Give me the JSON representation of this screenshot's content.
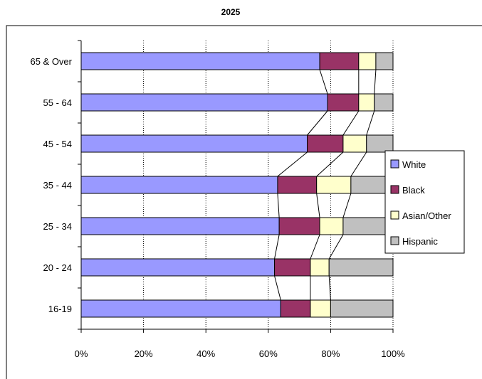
{
  "chart_data": {
    "type": "bar",
    "orientation": "horizontal",
    "stacked": "percent",
    "title": "2025",
    "categories": [
      "65 & Over",
      "55 - 64",
      "45 - 54",
      "35 - 44",
      "25 - 34",
      "20 - 24",
      "16-19"
    ],
    "series": [
      {
        "name": "White",
        "color": "#9999ff",
        "values": [
          76.5,
          79,
          72.5,
          63,
          63.5,
          62,
          64
        ]
      },
      {
        "name": "Black",
        "color": "#993366",
        "values": [
          12.5,
          10,
          11.5,
          12.5,
          13,
          11.5,
          9.5
        ]
      },
      {
        "name": "Asian/Other",
        "color": "#ffffcc",
        "values": [
          5.5,
          5,
          7.5,
          11,
          7.5,
          6,
          6.5
        ]
      },
      {
        "name": "Hispanic",
        "color": "#c0c0c0",
        "values": [
          5.5,
          6,
          8.5,
          13.5,
          16,
          20.5,
          20
        ]
      }
    ],
    "xlim": [
      0,
      100
    ],
    "xticks": [
      "0%",
      "20%",
      "40%",
      "60%",
      "80%",
      "100%"
    ],
    "xlabel": "",
    "ylabel": "",
    "grid": "vertical dotted",
    "series_lines": true,
    "legend_position": "right"
  }
}
